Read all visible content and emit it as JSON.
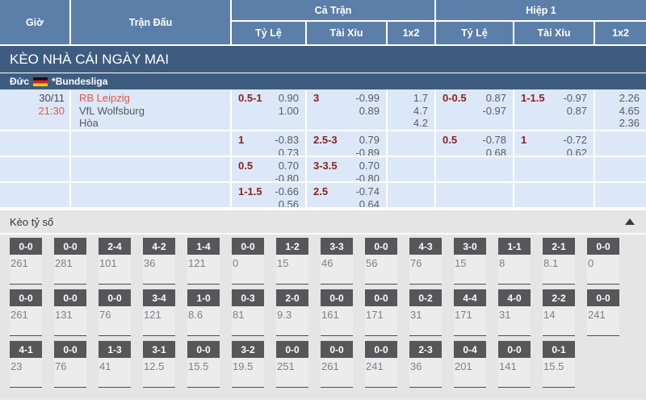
{
  "header": {
    "col_time": "Giờ",
    "col_match": "Trận Đấu",
    "group_full": "Cả Trận",
    "group_half": "Hiệp 1",
    "sub_handicap_full": "Tỷ Lệ",
    "sub_overunder_full": "Tài Xỉu",
    "sub_1x2_full": "1x2",
    "sub_handicap_half": "Tỷ Lệ",
    "sub_overunder_half": "Tài Xỉu",
    "sub_1x2_half": "1x2"
  },
  "banner": {
    "title": "KÈO NHÀ CÁI NGÀY MAI"
  },
  "league": {
    "country": "Đức",
    "flag": "germany-flag",
    "name": "*Bundesliga"
  },
  "match": {
    "date": "30/11",
    "time": "21:30",
    "home": "RB Leipzig",
    "away": "VfL Wolfsburg",
    "draw": "Hòa"
  },
  "odds_rows": [
    {
      "ft_hc": {
        "label": "0.5-1",
        "v1": "0.90",
        "v2": "1.00"
      },
      "ft_ou": {
        "label": "3",
        "v1": "-0.99",
        "v2": "0.89"
      },
      "ft_1x2": {
        "v1": "1.7",
        "v2": "4.7",
        "v3": "4.2"
      },
      "h1_hc": {
        "label": "0-0.5",
        "v1": "0.87",
        "v2": "-0.97"
      },
      "h1_ou": {
        "label": "1-1.5",
        "v1": "-0.97",
        "v2": "0.87"
      },
      "h1_1x2": {
        "v1": "2.26",
        "v2": "4.65",
        "v3": "2.36"
      }
    },
    {
      "ft_hc": {
        "label": "1",
        "v1": "-0.83",
        "v2": "0.73"
      },
      "ft_ou": {
        "label": "2.5-3",
        "v1": "0.79",
        "v2": "-0.89"
      },
      "h1_hc": {
        "label": "0.5",
        "v1": "-0.78",
        "v2": "0.68"
      },
      "h1_ou": {
        "label": "1",
        "v1": "-0.72",
        "v2": "0.62"
      }
    },
    {
      "ft_hc": {
        "label": "0.5",
        "v1": "0.70",
        "v2": "-0.80"
      },
      "ft_ou": {
        "label": "3-3.5",
        "v1": "0.70",
        "v2": "-0.80"
      }
    },
    {
      "ft_hc": {
        "label": "1-1.5",
        "v1": "-0.66",
        "v2": "0.56"
      },
      "ft_ou": {
        "label": "2.5",
        "v1": "-0.74",
        "v2": "0.64"
      }
    }
  ],
  "score_section": {
    "title": "Kèo tỷ số",
    "collapse_icon": "triangle-up",
    "rows": [
      [
        {
          "score": "0-0",
          "odds": "261"
        },
        {
          "score": "0-0",
          "odds": "281"
        },
        {
          "score": "2-4",
          "odds": "101"
        },
        {
          "score": "4-2",
          "odds": "36"
        },
        {
          "score": "1-4",
          "odds": "121"
        },
        {
          "score": "0-0",
          "odds": "0"
        },
        {
          "score": "1-2",
          "odds": "15"
        },
        {
          "score": "3-3",
          "odds": "46"
        },
        {
          "score": "0-0",
          "odds": "56"
        },
        {
          "score": "4-3",
          "odds": "76"
        },
        {
          "score": "3-0",
          "odds": "15"
        },
        {
          "score": "1-1",
          "odds": "8"
        },
        {
          "score": "2-1",
          "odds": "8.1"
        },
        {
          "score": "0-0",
          "odds": "0"
        }
      ],
      [
        {
          "score": "0-0",
          "odds": "261"
        },
        {
          "score": "0-0",
          "odds": "131"
        },
        {
          "score": "0-0",
          "odds": "76"
        },
        {
          "score": "3-4",
          "odds": "121"
        },
        {
          "score": "1-0",
          "odds": "8.6"
        },
        {
          "score": "0-3",
          "odds": "81"
        },
        {
          "score": "2-0",
          "odds": "9.3"
        },
        {
          "score": "0-0",
          "odds": "161"
        },
        {
          "score": "0-0",
          "odds": "171"
        },
        {
          "score": "0-2",
          "odds": "31"
        },
        {
          "score": "4-4",
          "odds": "171"
        },
        {
          "score": "4-0",
          "odds": "31"
        },
        {
          "score": "2-2",
          "odds": "14"
        },
        {
          "score": "0-0",
          "odds": "241"
        }
      ],
      [
        {
          "score": "4-1",
          "odds": "23"
        },
        {
          "score": "0-0",
          "odds": "76"
        },
        {
          "score": "1-3",
          "odds": "41"
        },
        {
          "score": "3-1",
          "odds": "12.5"
        },
        {
          "score": "0-0",
          "odds": "15.5"
        },
        {
          "score": "3-2",
          "odds": "19.5"
        },
        {
          "score": "0-0",
          "odds": "251"
        },
        {
          "score": "0-0",
          "odds": "261"
        },
        {
          "score": "0-0",
          "odds": "241"
        },
        {
          "score": "2-3",
          "odds": "36"
        },
        {
          "score": "0-4",
          "odds": "201"
        },
        {
          "score": "0-0",
          "odds": "141"
        },
        {
          "score": "0-1",
          "odds": "15.5"
        }
      ]
    ]
  },
  "colors": {
    "header-blue": "#5b7fa9",
    "dark-blue": "#3d5c80",
    "row-blue": "#dce8f7",
    "odds-maroon": "#8e1f1c",
    "accent-red": "#e8534e",
    "value-gray": "#5a5c60",
    "section-gray": "#e5e5e5",
    "box-head-gray": "#57575a"
  }
}
